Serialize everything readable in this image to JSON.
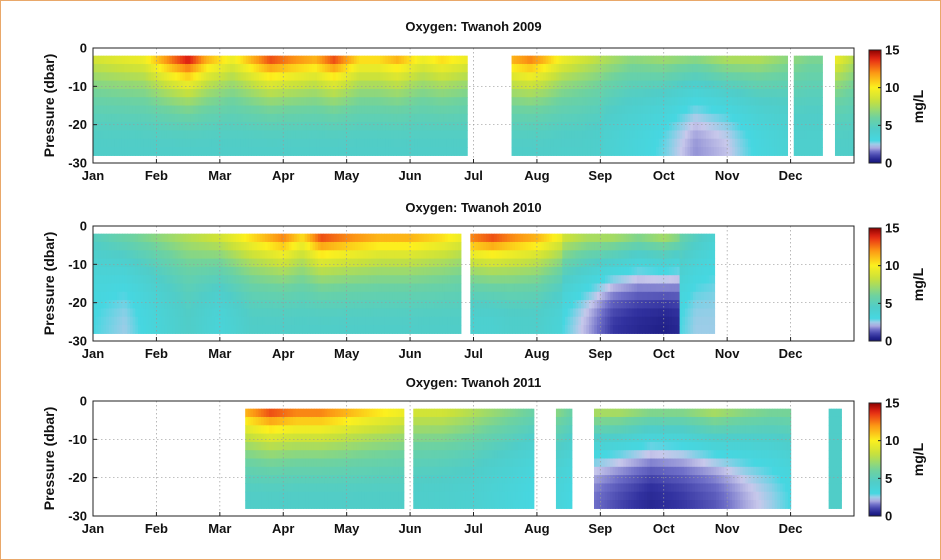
{
  "chart_data": [
    {
      "type": "heatmap",
      "title": "Oxygen: Twanoh 2009",
      "ylabel": "Pressure (dbar)",
      "colorbar_label": "mg/L",
      "x_ticks": [
        "Jan",
        "Feb",
        "Mar",
        "Apr",
        "May",
        "Jun",
        "Jul",
        "Aug",
        "Sep",
        "Oct",
        "Nov",
        "Dec"
      ],
      "y_ticks": [
        "0",
        "-10",
        "-20",
        "-30"
      ],
      "ylim": [
        -30,
        0
      ],
      "clim": [
        0,
        15
      ],
      "colorbar_ticks": [
        "15",
        "10",
        "5",
        "0"
      ],
      "grid": true,
      "segments": [
        {
          "start": 0.0,
          "end": 5.9,
          "x": [
            0.0,
            0.8,
            1.2,
            1.5,
            1.8,
            2.2,
            2.5,
            2.8,
            3.1,
            3.5,
            3.8,
            4.2,
            4.5,
            4.8,
            5.2,
            5.5,
            5.9
          ],
          "surface": [
            9,
            10,
            13,
            15,
            12,
            10,
            12,
            14,
            13,
            12,
            14,
            11,
            11,
            12,
            10,
            11,
            10
          ],
          "deep": [
            4.5,
            4.5,
            4.5,
            4.5,
            4.5,
            4.5,
            4.5,
            4.5,
            4.5,
            4.5,
            4.5,
            4.5,
            4.5,
            4.5,
            4.5,
            4.5,
            4.5
          ]
        },
        {
          "start": 6.6,
          "end": 8.05,
          "x": [
            6.6,
            6.9,
            7.1,
            7.4,
            7.7,
            8.05
          ],
          "surface": [
            12,
            13,
            12,
            10,
            9,
            8
          ],
          "deep": [
            4.5,
            4.5,
            4.5,
            4.4,
            4.4,
            4.2
          ]
        },
        {
          "start": 8.05,
          "end": 10.95,
          "x": [
            8.05,
            8.5,
            9.0,
            9.5,
            10.0,
            10.5,
            10.95
          ],
          "surface": [
            8,
            7,
            7.5,
            7,
            8,
            8,
            7
          ],
          "deep": [
            4,
            3.5,
            2.8,
            1.8,
            2.2,
            3.2,
            3.8
          ]
        },
        {
          "start": 11.05,
          "end": 11.5,
          "x": [
            11.05,
            11.3,
            11.5
          ],
          "surface": [
            7,
            6.5,
            6.5
          ],
          "deep": [
            4.2,
            4.2,
            4.2
          ]
        },
        {
          "start": 11.7,
          "end": 12.0,
          "x": [
            11.7,
            11.85,
            12.0
          ],
          "surface": [
            10,
            9,
            8
          ],
          "deep": [
            4.5,
            4.5,
            4.5
          ]
        }
      ]
    },
    {
      "type": "heatmap",
      "title": "Oxygen: Twanoh 2010",
      "ylabel": "Pressure (dbar)",
      "colorbar_label": "mg/L",
      "x_ticks": [
        "Jan",
        "Feb",
        "Mar",
        "Apr",
        "May",
        "Jun",
        "Jul",
        "Aug",
        "Sep",
        "Oct",
        "Nov",
        "Dec"
      ],
      "y_ticks": [
        "0",
        "-10",
        "-20",
        "-30"
      ],
      "ylim": [
        -30,
        0
      ],
      "clim": [
        0,
        15
      ],
      "colorbar_ticks": [
        "15",
        "10",
        "5",
        "0"
      ],
      "grid": true,
      "segments": [
        {
          "start": 0.0,
          "end": 5.8,
          "x": [
            0.0,
            0.5,
            1.0,
            1.5,
            2.0,
            2.5,
            3.0,
            3.3,
            3.6,
            4.0,
            4.5,
            5.0,
            5.5,
            5.8
          ],
          "surface": [
            5,
            6,
            7,
            8,
            9,
            11,
            13,
            11,
            14,
            13,
            12,
            12,
            11,
            10
          ],
          "deep": [
            3,
            2.5,
            3.5,
            4.5,
            3.5,
            4.5,
            4.5,
            4.5,
            4.5,
            4.5,
            4.5,
            4.5,
            4.5,
            4.5
          ]
        },
        {
          "start": 5.95,
          "end": 7.4,
          "x": [
            5.95,
            6.3,
            6.6,
            7.0,
            7.4
          ],
          "surface": [
            13,
            14,
            13,
            12,
            10
          ],
          "deep": [
            4,
            4,
            4.3,
            4.3,
            3.5
          ]
        },
        {
          "start": 7.4,
          "end": 9.25,
          "x": [
            7.4,
            7.8,
            8.2,
            8.6,
            9.0,
            9.25
          ],
          "surface": [
            9,
            8,
            8,
            7,
            8,
            7
          ],
          "deep": [
            3.0,
            2.0,
            0.8,
            0.5,
            0.3,
            0.5
          ]
        },
        {
          "start": 9.25,
          "end": 9.8,
          "x": [
            9.25,
            9.5,
            9.8
          ],
          "surface": [
            6,
            5,
            4
          ],
          "deep": [
            3,
            2.5,
            2.5
          ]
        }
      ]
    },
    {
      "type": "heatmap",
      "title": "Oxygen: Twanoh 2011",
      "ylabel": "Pressure (dbar)",
      "colorbar_label": "mg/L",
      "x_ticks": [
        "Jan",
        "Feb",
        "Mar",
        "Apr",
        "May",
        "Jun",
        "Jul",
        "Aug",
        "Sep",
        "Oct",
        "Nov",
        "Dec"
      ],
      "y_ticks": [
        "0",
        "-10",
        "-20",
        "-30"
      ],
      "ylim": [
        -30,
        0
      ],
      "clim": [
        0,
        15
      ],
      "colorbar_ticks": [
        "15",
        "10",
        "5",
        "0"
      ],
      "grid": true,
      "segments": [
        {
          "start": 2.4,
          "end": 4.9,
          "x": [
            2.4,
            2.8,
            3.2,
            3.6,
            4.0,
            4.4,
            4.9
          ],
          "surface": [
            12,
            14,
            13,
            13,
            12,
            11,
            10
          ],
          "deep": [
            4.5,
            4.5,
            4.5,
            4.5,
            4.5,
            4.5,
            4.5
          ]
        },
        {
          "start": 5.05,
          "end": 6.95,
          "x": [
            5.05,
            5.5,
            6.0,
            6.5,
            6.95
          ],
          "surface": [
            9,
            9,
            8,
            7,
            6
          ],
          "deep": [
            4.3,
            4.2,
            4.0,
            3.5,
            3.0
          ]
        },
        {
          "start": 7.3,
          "end": 7.55,
          "x": [
            7.3,
            7.55
          ],
          "surface": [
            7,
            6
          ],
          "deep": [
            3.5,
            3
          ]
        },
        {
          "start": 7.9,
          "end": 11.0,
          "x": [
            7.9,
            8.3,
            8.8,
            9.3,
            9.8,
            10.3,
            10.7,
            11.0
          ],
          "surface": [
            8,
            8,
            7,
            7,
            8,
            7,
            6.5,
            6.5
          ],
          "deep": [
            1.5,
            1.0,
            0.5,
            0.8,
            1.2,
            2.0,
            2.5,
            3.0
          ]
        },
        {
          "start": 11.6,
          "end": 11.8,
          "x": [
            11.6,
            11.8
          ],
          "surface": [
            4.5,
            4.5
          ],
          "deep": [
            4.5,
            4.5
          ]
        }
      ]
    }
  ]
}
